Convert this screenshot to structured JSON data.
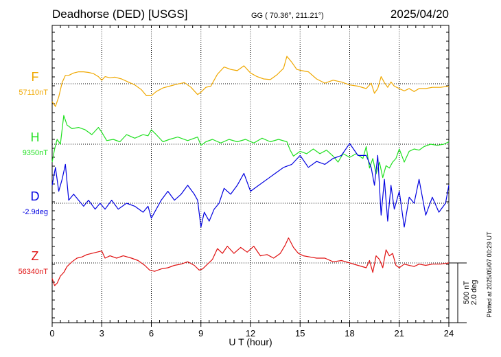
{
  "header": {
    "station": "Deadhorse (DED)  [USGS]",
    "coords": "GG ( 70.36°, 211.21°)",
    "date": "2025/04/20"
  },
  "plotted_note": "Plotted at 2025/05/07 00:29 UT",
  "scale": {
    "top": "500 nT",
    "bottom": "2.0 deg"
  },
  "chart_data": {
    "type": "line",
    "xlabel": "U T (hour)",
    "xlim": [
      0,
      24
    ],
    "x_ticks": [
      "0",
      "3",
      "6",
      "9",
      "12",
      "15",
      "18",
      "21",
      "24"
    ],
    "grid": true,
    "series": [
      {
        "name": "F",
        "baseline_label": "57110nT",
        "color": "#f0a800",
        "baseline_value": 0,
        "x": [
          0,
          0.2,
          0.4,
          0.6,
          0.8,
          1.0,
          1.3,
          1.6,
          1.9,
          2.2,
          2.5,
          2.8,
          3.0,
          3.2,
          3.5,
          3.8,
          4.2,
          4.6,
          5.0,
          5.4,
          5.7,
          6.0,
          6.3,
          6.7,
          7.1,
          7.5,
          8.0,
          8.4,
          8.8,
          9.0,
          9.3,
          9.6,
          10.0,
          10.4,
          10.8,
          11.2,
          11.6,
          12.0,
          12.4,
          12.8,
          13.2,
          13.6,
          14.0,
          14.2,
          14.5,
          14.8,
          15.1,
          15.5,
          16.0,
          16.5,
          17.0,
          17.5,
          18.0,
          18.5,
          19.0,
          19.3,
          19.5,
          19.7,
          19.9,
          20.1,
          20.3,
          20.5,
          20.7,
          21.0,
          21.3,
          21.6,
          21.9,
          22.2,
          22.6,
          23.0,
          23.5,
          24.0
        ],
        "values": [
          -150,
          -190,
          -110,
          10,
          70,
          70,
          90,
          100,
          100,
          95,
          85,
          60,
          30,
          60,
          50,
          55,
          40,
          15,
          -10,
          -50,
          -100,
          -100,
          -65,
          -35,
          -20,
          -5,
          10,
          -30,
          -90,
          -70,
          -30,
          -20,
          80,
          140,
          120,
          110,
          150,
          90,
          60,
          40,
          35,
          75,
          130,
          230,
          180,
          120,
          110,
          100,
          40,
          5,
          30,
          15,
          -10,
          -20,
          -40,
          5,
          -80,
          -40,
          60,
          10,
          -30,
          15,
          -20,
          -40,
          -60,
          -40,
          -65,
          -40,
          -40,
          -30,
          -30,
          -20
        ]
      },
      {
        "name": "H",
        "baseline_label": "9350nT",
        "color": "#20e020",
        "baseline_value": 0,
        "x": [
          0,
          0.15,
          0.3,
          0.5,
          0.7,
          0.9,
          1.2,
          1.6,
          2.0,
          2.4,
          2.8,
          3.0,
          3.3,
          3.7,
          4.1,
          4.5,
          5.0,
          5.5,
          5.8,
          6.0,
          6.3,
          6.7,
          7.1,
          7.6,
          8.2,
          8.8,
          9.0,
          9.3,
          9.7,
          10.2,
          10.7,
          11.2,
          11.7,
          12.2,
          12.7,
          13.2,
          13.7,
          14.2,
          14.4,
          14.6,
          15.0,
          15.4,
          15.8,
          16.2,
          16.6,
          17.0,
          17.3,
          17.6,
          18.0,
          18.4,
          18.8,
          19.0,
          19.2,
          19.4,
          19.6,
          19.8,
          20.0,
          20.2,
          20.4,
          20.6,
          20.8,
          21.0,
          21.3,
          21.6,
          21.9,
          22.2,
          22.5,
          22.9,
          23.3,
          23.7,
          24.0
        ],
        "values": [
          -150,
          -40,
          40,
          0,
          240,
          160,
          130,
          140,
          120,
          80,
          140,
          100,
          30,
          40,
          20,
          80,
          50,
          80,
          70,
          120,
          80,
          20,
          40,
          60,
          30,
          60,
          -10,
          20,
          40,
          10,
          40,
          20,
          40,
          10,
          50,
          20,
          40,
          20,
          -50,
          -100,
          -60,
          -80,
          -40,
          -80,
          -50,
          -100,
          -150,
          -80,
          -110,
          -80,
          -120,
          -20,
          -200,
          -120,
          -250,
          -150,
          -280,
          -180,
          -200,
          -150,
          -120,
          -40,
          -150,
          -60,
          -40,
          -50,
          -20,
          0,
          -10,
          0,
          20
        ]
      },
      {
        "name": "D",
        "baseline_label": "-2.9deg",
        "color": "#0000e0",
        "baseline_value": 0,
        "x": [
          0,
          0.2,
          0.4,
          0.6,
          0.8,
          1.0,
          1.3,
          1.6,
          1.9,
          2.2,
          2.6,
          2.9,
          3.2,
          3.6,
          4.0,
          4.5,
          5.0,
          5.5,
          5.8,
          6.0,
          6.3,
          6.6,
          7.0,
          7.4,
          7.8,
          8.2,
          8.6,
          8.8,
          9.0,
          9.2,
          9.5,
          9.8,
          10.1,
          10.4,
          10.8,
          11.2,
          11.6,
          12.0,
          12.5,
          13.0,
          13.5,
          14.0,
          14.5,
          15.0,
          15.5,
          16.0,
          16.5,
          17.0,
          17.5,
          18.0,
          18.5,
          19.0,
          19.3,
          19.5,
          19.7,
          19.9,
          20.1,
          20.3,
          20.5,
          20.7,
          21.0,
          21.3,
          21.6,
          21.9,
          22.2,
          22.6,
          23.0,
          23.4,
          23.8,
          24.0
        ],
        "values": [
          0.6,
          1.2,
          0.4,
          0.8,
          1.3,
          0.1,
          0.3,
          0.1,
          -0.1,
          0.1,
          -0.2,
          0.0,
          -0.2,
          0.1,
          -0.2,
          0.0,
          -0.1,
          -0.3,
          -0.1,
          -0.5,
          -0.2,
          0.1,
          0.4,
          0.1,
          0.3,
          0.6,
          0.3,
          0.1,
          -0.8,
          -0.3,
          -0.6,
          -0.2,
          0.0,
          0.5,
          0.3,
          0.6,
          1.0,
          0.4,
          0.6,
          0.8,
          1.0,
          1.2,
          1.3,
          1.6,
          1.2,
          1.4,
          1.3,
          1.5,
          1.6,
          2.0,
          1.6,
          1.6,
          1.2,
          0.6,
          1.6,
          -0.4,
          0.8,
          -0.6,
          0.6,
          -0.2,
          0.4,
          -0.8,
          0.2,
          0.0,
          0.8,
          -0.4,
          0.2,
          -0.3,
          0.0,
          0.6
        ]
      },
      {
        "name": "Z",
        "baseline_label": "56340nT",
        "color": "#e01010",
        "baseline_value": 0,
        "x": [
          0,
          0.15,
          0.3,
          0.5,
          0.7,
          0.9,
          1.2,
          1.5,
          1.8,
          2.1,
          2.4,
          2.7,
          3.0,
          3.2,
          3.5,
          3.9,
          4.3,
          4.8,
          5.2,
          5.6,
          5.9,
          6.2,
          6.6,
          7.0,
          7.4,
          7.8,
          8.2,
          8.6,
          8.9,
          9.1,
          9.4,
          9.7,
          10.0,
          10.3,
          10.6,
          11.0,
          11.4,
          11.8,
          12.2,
          12.6,
          13.0,
          13.4,
          13.8,
          14.1,
          14.3,
          14.6,
          14.9,
          15.2,
          15.6,
          16.0,
          16.5,
          17.0,
          17.5,
          18.0,
          18.5,
          19.0,
          19.2,
          19.4,
          19.6,
          19.8,
          20.0,
          20.2,
          20.4,
          20.6,
          20.8,
          21.0,
          21.3,
          21.6,
          21.9,
          22.2,
          22.6,
          23.0,
          23.5,
          24.0
        ],
        "values": [
          -130,
          -190,
          -170,
          -110,
          -80,
          -30,
          10,
          40,
          50,
          70,
          80,
          90,
          100,
          40,
          60,
          40,
          60,
          40,
          20,
          -20,
          -60,
          -70,
          -50,
          -40,
          -20,
          -10,
          10,
          -20,
          -60,
          -50,
          -10,
          30,
          120,
          80,
          140,
          80,
          130,
          90,
          140,
          60,
          70,
          40,
          80,
          150,
          210,
          130,
          80,
          60,
          50,
          40,
          40,
          10,
          20,
          0,
          -20,
          -40,
          20,
          -80,
          60,
          30,
          -40,
          110,
          60,
          80,
          -20,
          -40,
          -10,
          -20,
          -30,
          -10,
          -20,
          -10,
          -10,
          0
        ]
      }
    ]
  }
}
